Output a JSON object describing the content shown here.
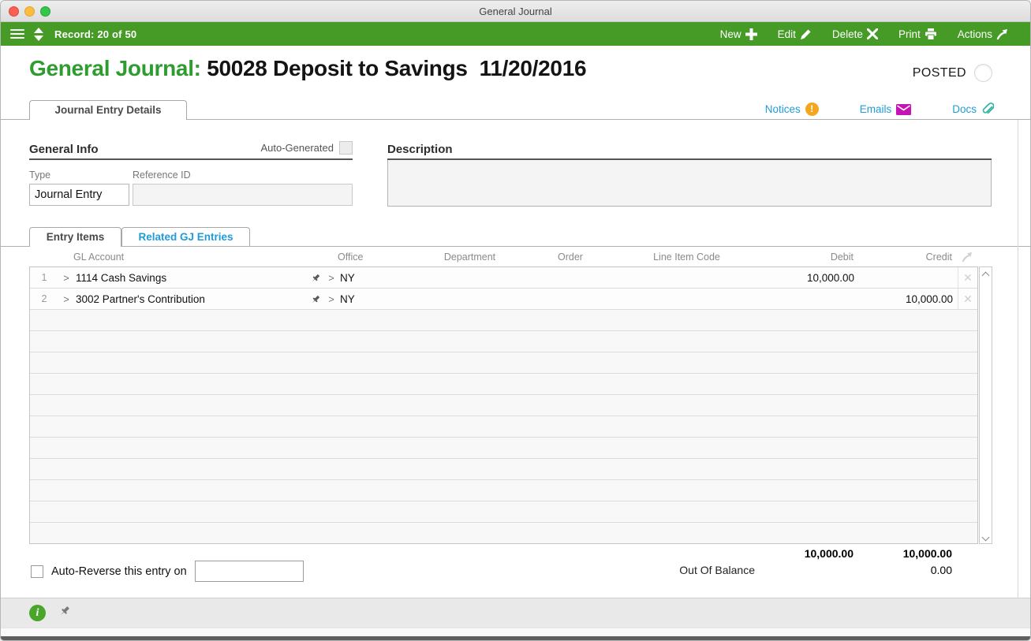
{
  "window": {
    "title": "General Journal"
  },
  "toolbar": {
    "record_label": "Record: 20 of 50",
    "new_label": "New",
    "edit_label": "Edit",
    "delete_label": "Delete",
    "print_label": "Print",
    "actions_label": "Actions"
  },
  "header": {
    "title_prefix": "General Journal: ",
    "title_main": "50028 Deposit to Savings  11/20/2016",
    "status_label": "POSTED"
  },
  "tabs": {
    "details_tab": "Journal Entry Details",
    "entry_items_tab": "Entry Items",
    "related_tab": "Related GJ Entries"
  },
  "links": {
    "notices": "Notices",
    "emails": "Emails",
    "docs": "Docs"
  },
  "general_info": {
    "heading": "General Info",
    "auto_generated_label": "Auto-Generated",
    "type_label": "Type",
    "type_value": "Journal Entry",
    "reference_id_label": "Reference ID",
    "reference_id_value": ""
  },
  "description": {
    "heading": "Description",
    "value": ""
  },
  "table": {
    "columns": [
      "GL Account",
      "Office",
      "Department",
      "Order",
      "Line Item Code",
      "Debit",
      "Credit"
    ],
    "rows": [
      {
        "num": "1",
        "gl_account": "1114 Cash Savings",
        "office": "NY",
        "debit": "10,000.00",
        "credit": ""
      },
      {
        "num": "2",
        "gl_account": "3002 Partner's Contribution",
        "office": "NY",
        "debit": "",
        "credit": "10,000.00"
      }
    ],
    "empty_row_count": 11,
    "totals": {
      "debit": "10,000.00",
      "credit": "10,000.00"
    },
    "out_of_balance_label": "Out Of Balance",
    "out_of_balance_value": "0.00"
  },
  "footer": {
    "auto_reverse_label": "Auto-Reverse this entry on",
    "auto_reverse_date": ""
  },
  "colors": {
    "toolbar_green": "#459b26",
    "title_green": "#2f9c30",
    "link_blue": "#1f9cd8",
    "notice_orange": "#f2a71e",
    "email_magenta": "#c514b4",
    "docs_teal": "#2eb3a1",
    "info_green": "#4aa52b"
  }
}
